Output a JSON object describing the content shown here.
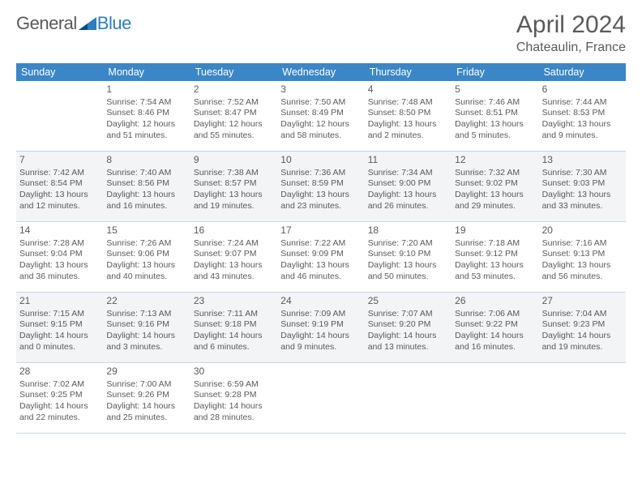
{
  "brand": {
    "part1": "General",
    "part2": "Blue"
  },
  "title": "April 2024",
  "location": "Chateaulin, France",
  "colors": {
    "header_bg": "#3b86c6",
    "header_text": "#ffffff",
    "border": "#c9d6e2",
    "text": "#5a5a5a",
    "shade": "#f2f4f6"
  },
  "dayHeaders": [
    "Sunday",
    "Monday",
    "Tuesday",
    "Wednesday",
    "Thursday",
    "Friday",
    "Saturday"
  ],
  "weeks": [
    {
      "shaded": false,
      "days": [
        {
          "n": "",
          "sr": "",
          "ss": "",
          "dl": ""
        },
        {
          "n": "1",
          "sr": "Sunrise: 7:54 AM",
          "ss": "Sunset: 8:46 PM",
          "dl": "Daylight: 12 hours and 51 minutes."
        },
        {
          "n": "2",
          "sr": "Sunrise: 7:52 AM",
          "ss": "Sunset: 8:47 PM",
          "dl": "Daylight: 12 hours and 55 minutes."
        },
        {
          "n": "3",
          "sr": "Sunrise: 7:50 AM",
          "ss": "Sunset: 8:49 PM",
          "dl": "Daylight: 12 hours and 58 minutes."
        },
        {
          "n": "4",
          "sr": "Sunrise: 7:48 AM",
          "ss": "Sunset: 8:50 PM",
          "dl": "Daylight: 13 hours and 2 minutes."
        },
        {
          "n": "5",
          "sr": "Sunrise: 7:46 AM",
          "ss": "Sunset: 8:51 PM",
          "dl": "Daylight: 13 hours and 5 minutes."
        },
        {
          "n": "6",
          "sr": "Sunrise: 7:44 AM",
          "ss": "Sunset: 8:53 PM",
          "dl": "Daylight: 13 hours and 9 minutes."
        }
      ]
    },
    {
      "shaded": true,
      "days": [
        {
          "n": "7",
          "sr": "Sunrise: 7:42 AM",
          "ss": "Sunset: 8:54 PM",
          "dl": "Daylight: 13 hours and 12 minutes."
        },
        {
          "n": "8",
          "sr": "Sunrise: 7:40 AM",
          "ss": "Sunset: 8:56 PM",
          "dl": "Daylight: 13 hours and 16 minutes."
        },
        {
          "n": "9",
          "sr": "Sunrise: 7:38 AM",
          "ss": "Sunset: 8:57 PM",
          "dl": "Daylight: 13 hours and 19 minutes."
        },
        {
          "n": "10",
          "sr": "Sunrise: 7:36 AM",
          "ss": "Sunset: 8:59 PM",
          "dl": "Daylight: 13 hours and 23 minutes."
        },
        {
          "n": "11",
          "sr": "Sunrise: 7:34 AM",
          "ss": "Sunset: 9:00 PM",
          "dl": "Daylight: 13 hours and 26 minutes."
        },
        {
          "n": "12",
          "sr": "Sunrise: 7:32 AM",
          "ss": "Sunset: 9:02 PM",
          "dl": "Daylight: 13 hours and 29 minutes."
        },
        {
          "n": "13",
          "sr": "Sunrise: 7:30 AM",
          "ss": "Sunset: 9:03 PM",
          "dl": "Daylight: 13 hours and 33 minutes."
        }
      ]
    },
    {
      "shaded": false,
      "days": [
        {
          "n": "14",
          "sr": "Sunrise: 7:28 AM",
          "ss": "Sunset: 9:04 PM",
          "dl": "Daylight: 13 hours and 36 minutes."
        },
        {
          "n": "15",
          "sr": "Sunrise: 7:26 AM",
          "ss": "Sunset: 9:06 PM",
          "dl": "Daylight: 13 hours and 40 minutes."
        },
        {
          "n": "16",
          "sr": "Sunrise: 7:24 AM",
          "ss": "Sunset: 9:07 PM",
          "dl": "Daylight: 13 hours and 43 minutes."
        },
        {
          "n": "17",
          "sr": "Sunrise: 7:22 AM",
          "ss": "Sunset: 9:09 PM",
          "dl": "Daylight: 13 hours and 46 minutes."
        },
        {
          "n": "18",
          "sr": "Sunrise: 7:20 AM",
          "ss": "Sunset: 9:10 PM",
          "dl": "Daylight: 13 hours and 50 minutes."
        },
        {
          "n": "19",
          "sr": "Sunrise: 7:18 AM",
          "ss": "Sunset: 9:12 PM",
          "dl": "Daylight: 13 hours and 53 minutes."
        },
        {
          "n": "20",
          "sr": "Sunrise: 7:16 AM",
          "ss": "Sunset: 9:13 PM",
          "dl": "Daylight: 13 hours and 56 minutes."
        }
      ]
    },
    {
      "shaded": true,
      "days": [
        {
          "n": "21",
          "sr": "Sunrise: 7:15 AM",
          "ss": "Sunset: 9:15 PM",
          "dl": "Daylight: 14 hours and 0 minutes."
        },
        {
          "n": "22",
          "sr": "Sunrise: 7:13 AM",
          "ss": "Sunset: 9:16 PM",
          "dl": "Daylight: 14 hours and 3 minutes."
        },
        {
          "n": "23",
          "sr": "Sunrise: 7:11 AM",
          "ss": "Sunset: 9:18 PM",
          "dl": "Daylight: 14 hours and 6 minutes."
        },
        {
          "n": "24",
          "sr": "Sunrise: 7:09 AM",
          "ss": "Sunset: 9:19 PM",
          "dl": "Daylight: 14 hours and 9 minutes."
        },
        {
          "n": "25",
          "sr": "Sunrise: 7:07 AM",
          "ss": "Sunset: 9:20 PM",
          "dl": "Daylight: 14 hours and 13 minutes."
        },
        {
          "n": "26",
          "sr": "Sunrise: 7:06 AM",
          "ss": "Sunset: 9:22 PM",
          "dl": "Daylight: 14 hours and 16 minutes."
        },
        {
          "n": "27",
          "sr": "Sunrise: 7:04 AM",
          "ss": "Sunset: 9:23 PM",
          "dl": "Daylight: 14 hours and 19 minutes."
        }
      ]
    },
    {
      "shaded": false,
      "days": [
        {
          "n": "28",
          "sr": "Sunrise: 7:02 AM",
          "ss": "Sunset: 9:25 PM",
          "dl": "Daylight: 14 hours and 22 minutes."
        },
        {
          "n": "29",
          "sr": "Sunrise: 7:00 AM",
          "ss": "Sunset: 9:26 PM",
          "dl": "Daylight: 14 hours and 25 minutes."
        },
        {
          "n": "30",
          "sr": "Sunrise: 6:59 AM",
          "ss": "Sunset: 9:28 PM",
          "dl": "Daylight: 14 hours and 28 minutes."
        },
        {
          "n": "",
          "sr": "",
          "ss": "",
          "dl": ""
        },
        {
          "n": "",
          "sr": "",
          "ss": "",
          "dl": ""
        },
        {
          "n": "",
          "sr": "",
          "ss": "",
          "dl": ""
        },
        {
          "n": "",
          "sr": "",
          "ss": "",
          "dl": ""
        }
      ]
    }
  ]
}
